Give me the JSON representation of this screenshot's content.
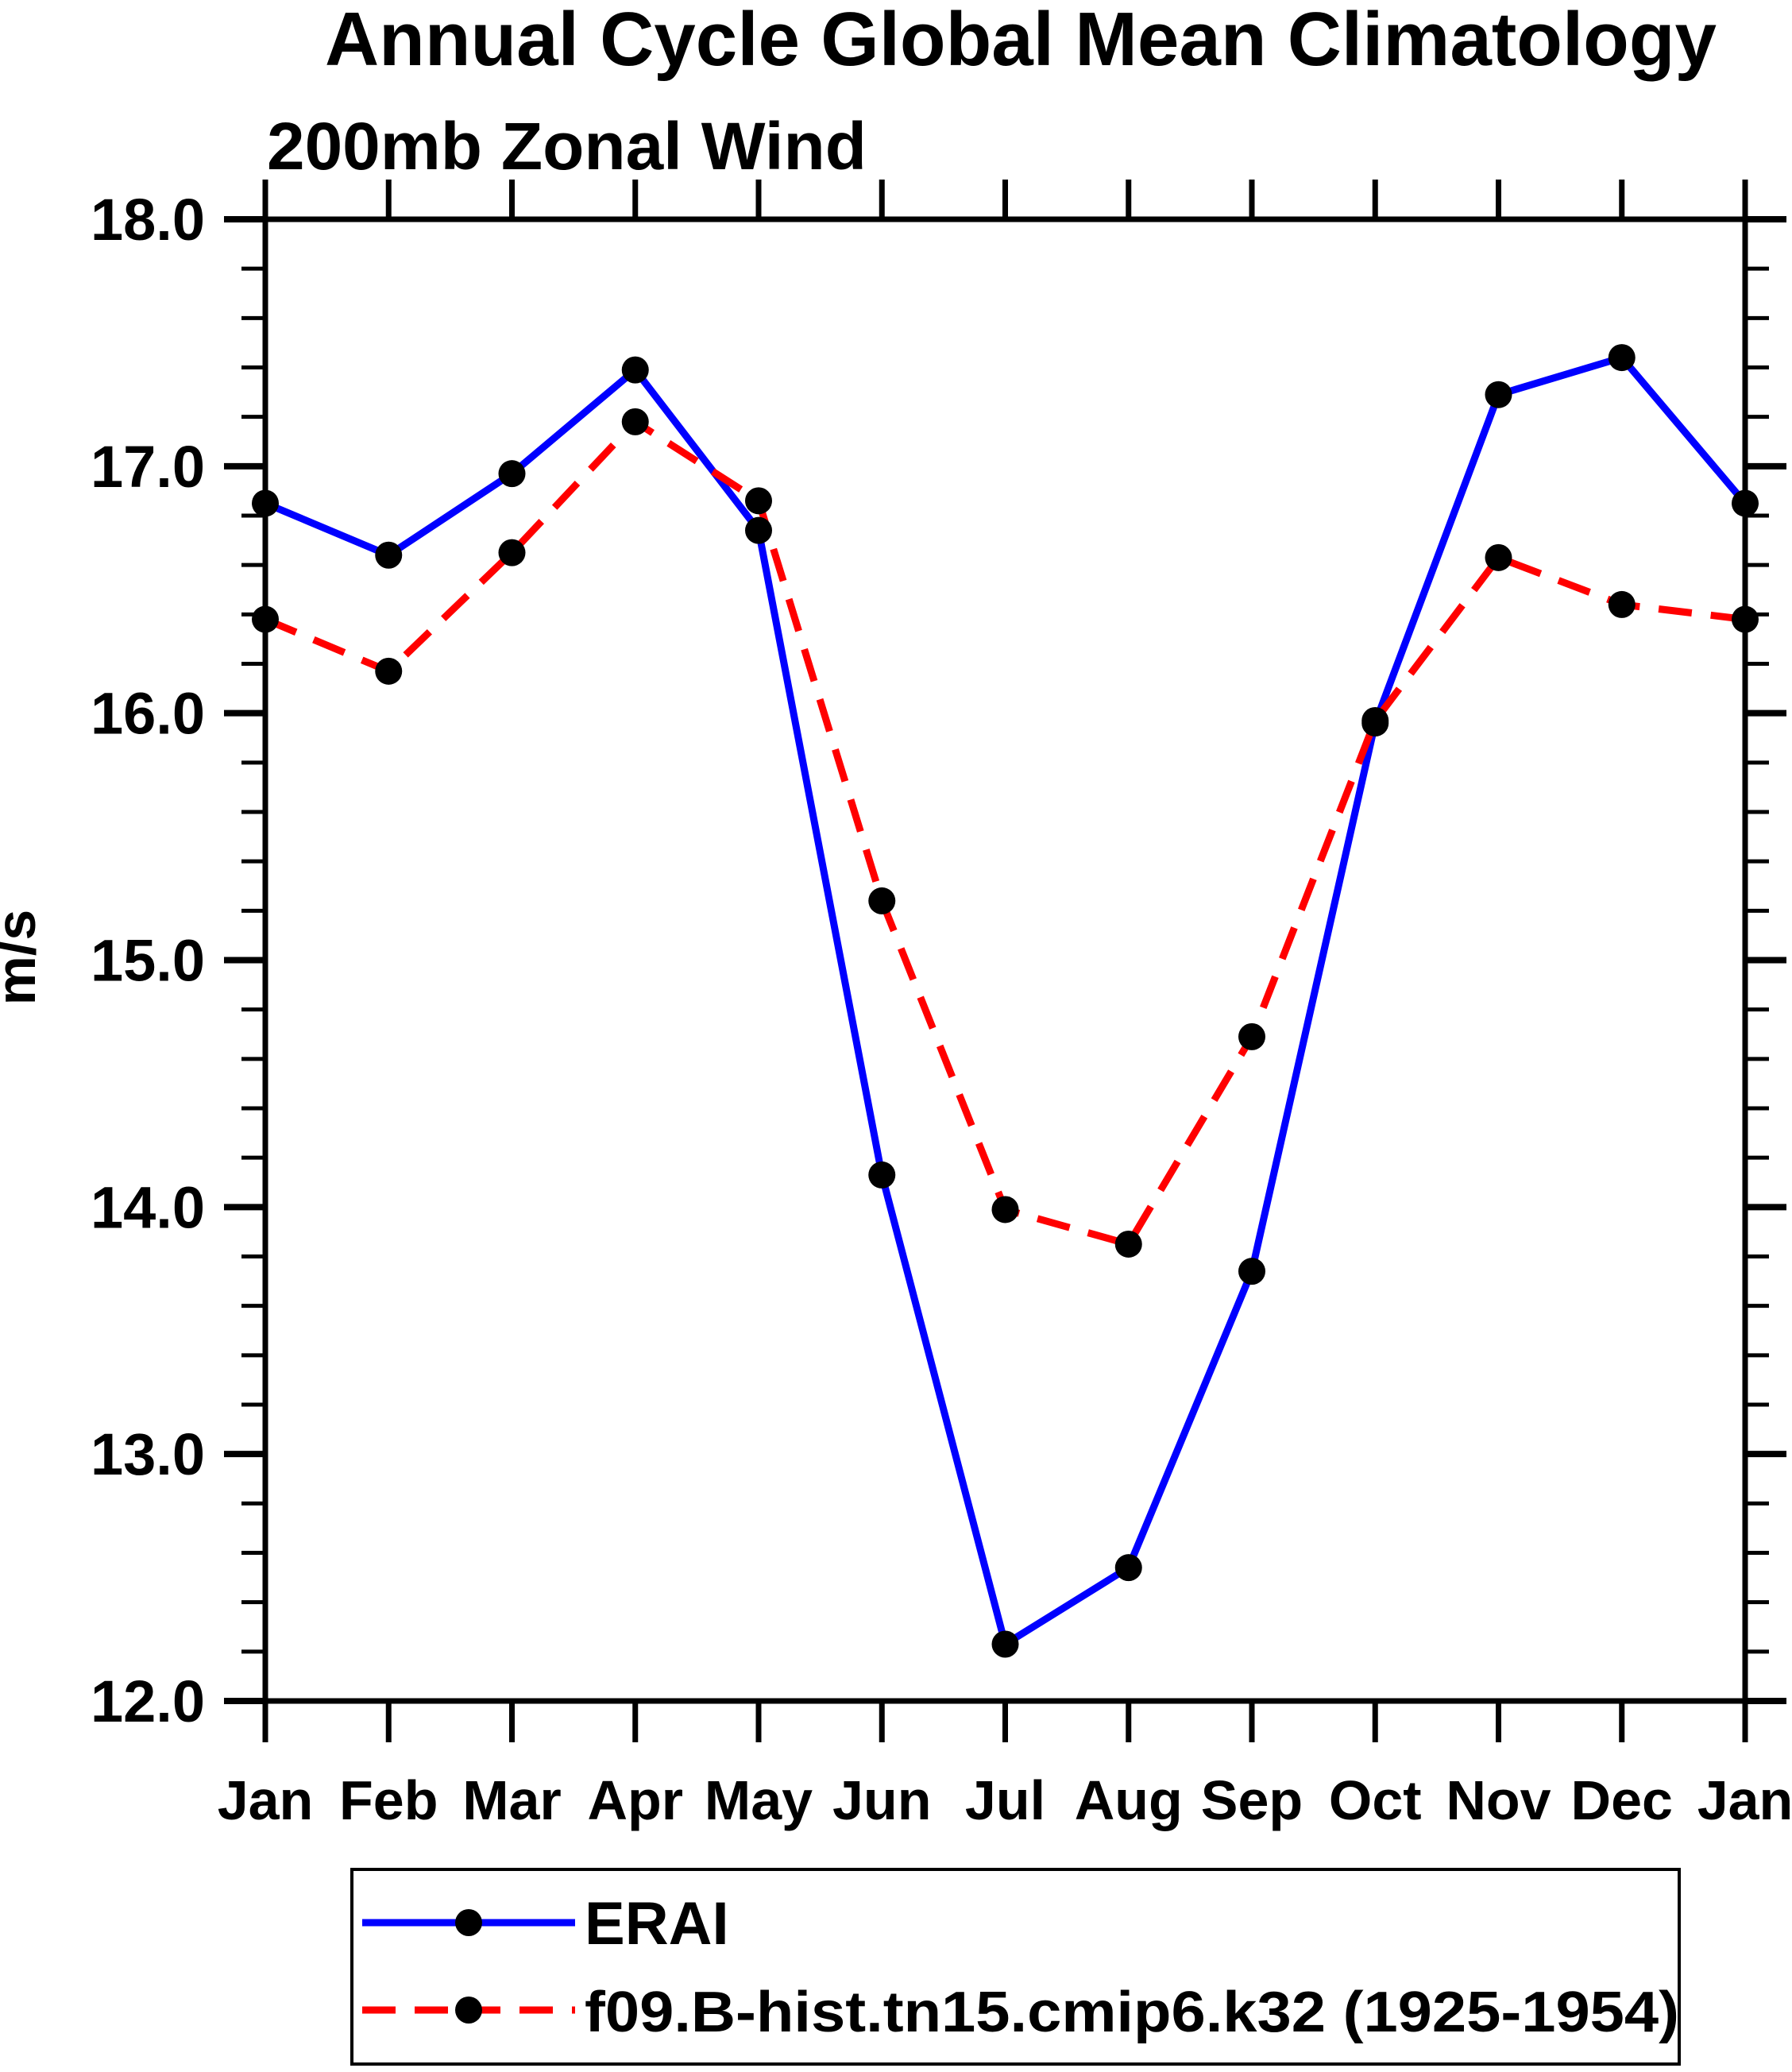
{
  "title": "Annual Cycle Global Mean Climatology",
  "subtitle": "200mb Zonal Wind",
  "ylabel": "m/s",
  "colors": {
    "erai_line": "#0000FF",
    "model_line": "#FF0000",
    "marker": "#000000",
    "axis": "#000000",
    "background": "#FFFFFF"
  },
  "legend": {
    "entries": [
      {
        "label": "ERAI",
        "line_style": "solid",
        "line_color": "#0000FF"
      },
      {
        "label": "f09.B-hist.tn15.cmip6.k32 (1925-1954)",
        "line_style": "dashed",
        "line_color": "#FF0000"
      }
    ]
  },
  "chart_data": {
    "type": "line",
    "title": "Annual Cycle Global Mean Climatology",
    "subtitle": "200mb Zonal Wind",
    "xlabel": "",
    "ylabel": "m/s",
    "categories": [
      "Jan",
      "Feb",
      "Mar",
      "Apr",
      "May",
      "Jun",
      "Jul",
      "Aug",
      "Sep",
      "Oct",
      "Nov",
      "Dec",
      "Jan"
    ],
    "series": [
      {
        "name": "ERAI",
        "color": "#0000FF",
        "style": "solid",
        "marker": "filled-circle",
        "values": [
          16.85,
          16.64,
          16.97,
          17.39,
          16.74,
          14.13,
          12.23,
          12.54,
          13.74,
          15.96,
          17.29,
          17.44,
          16.85
        ]
      },
      {
        "name": "f09.B-hist.tn15.cmip6.k32 (1925-1954)",
        "color": "#FF0000",
        "style": "dashed",
        "marker": "filled-circle",
        "values": [
          16.38,
          16.17,
          16.65,
          17.18,
          16.86,
          15.24,
          13.99,
          13.85,
          14.69,
          15.97,
          16.63,
          16.44,
          16.38
        ]
      }
    ],
    "ylim": [
      12.0,
      18.0
    ],
    "ytick_step": 1.0,
    "yminor_step": 0.2,
    "ytick_labels": [
      "12.0",
      "13.0",
      "14.0",
      "15.0",
      "16.0",
      "17.0",
      "18.0"
    ],
    "grid": false,
    "legend_position": "bottom"
  }
}
